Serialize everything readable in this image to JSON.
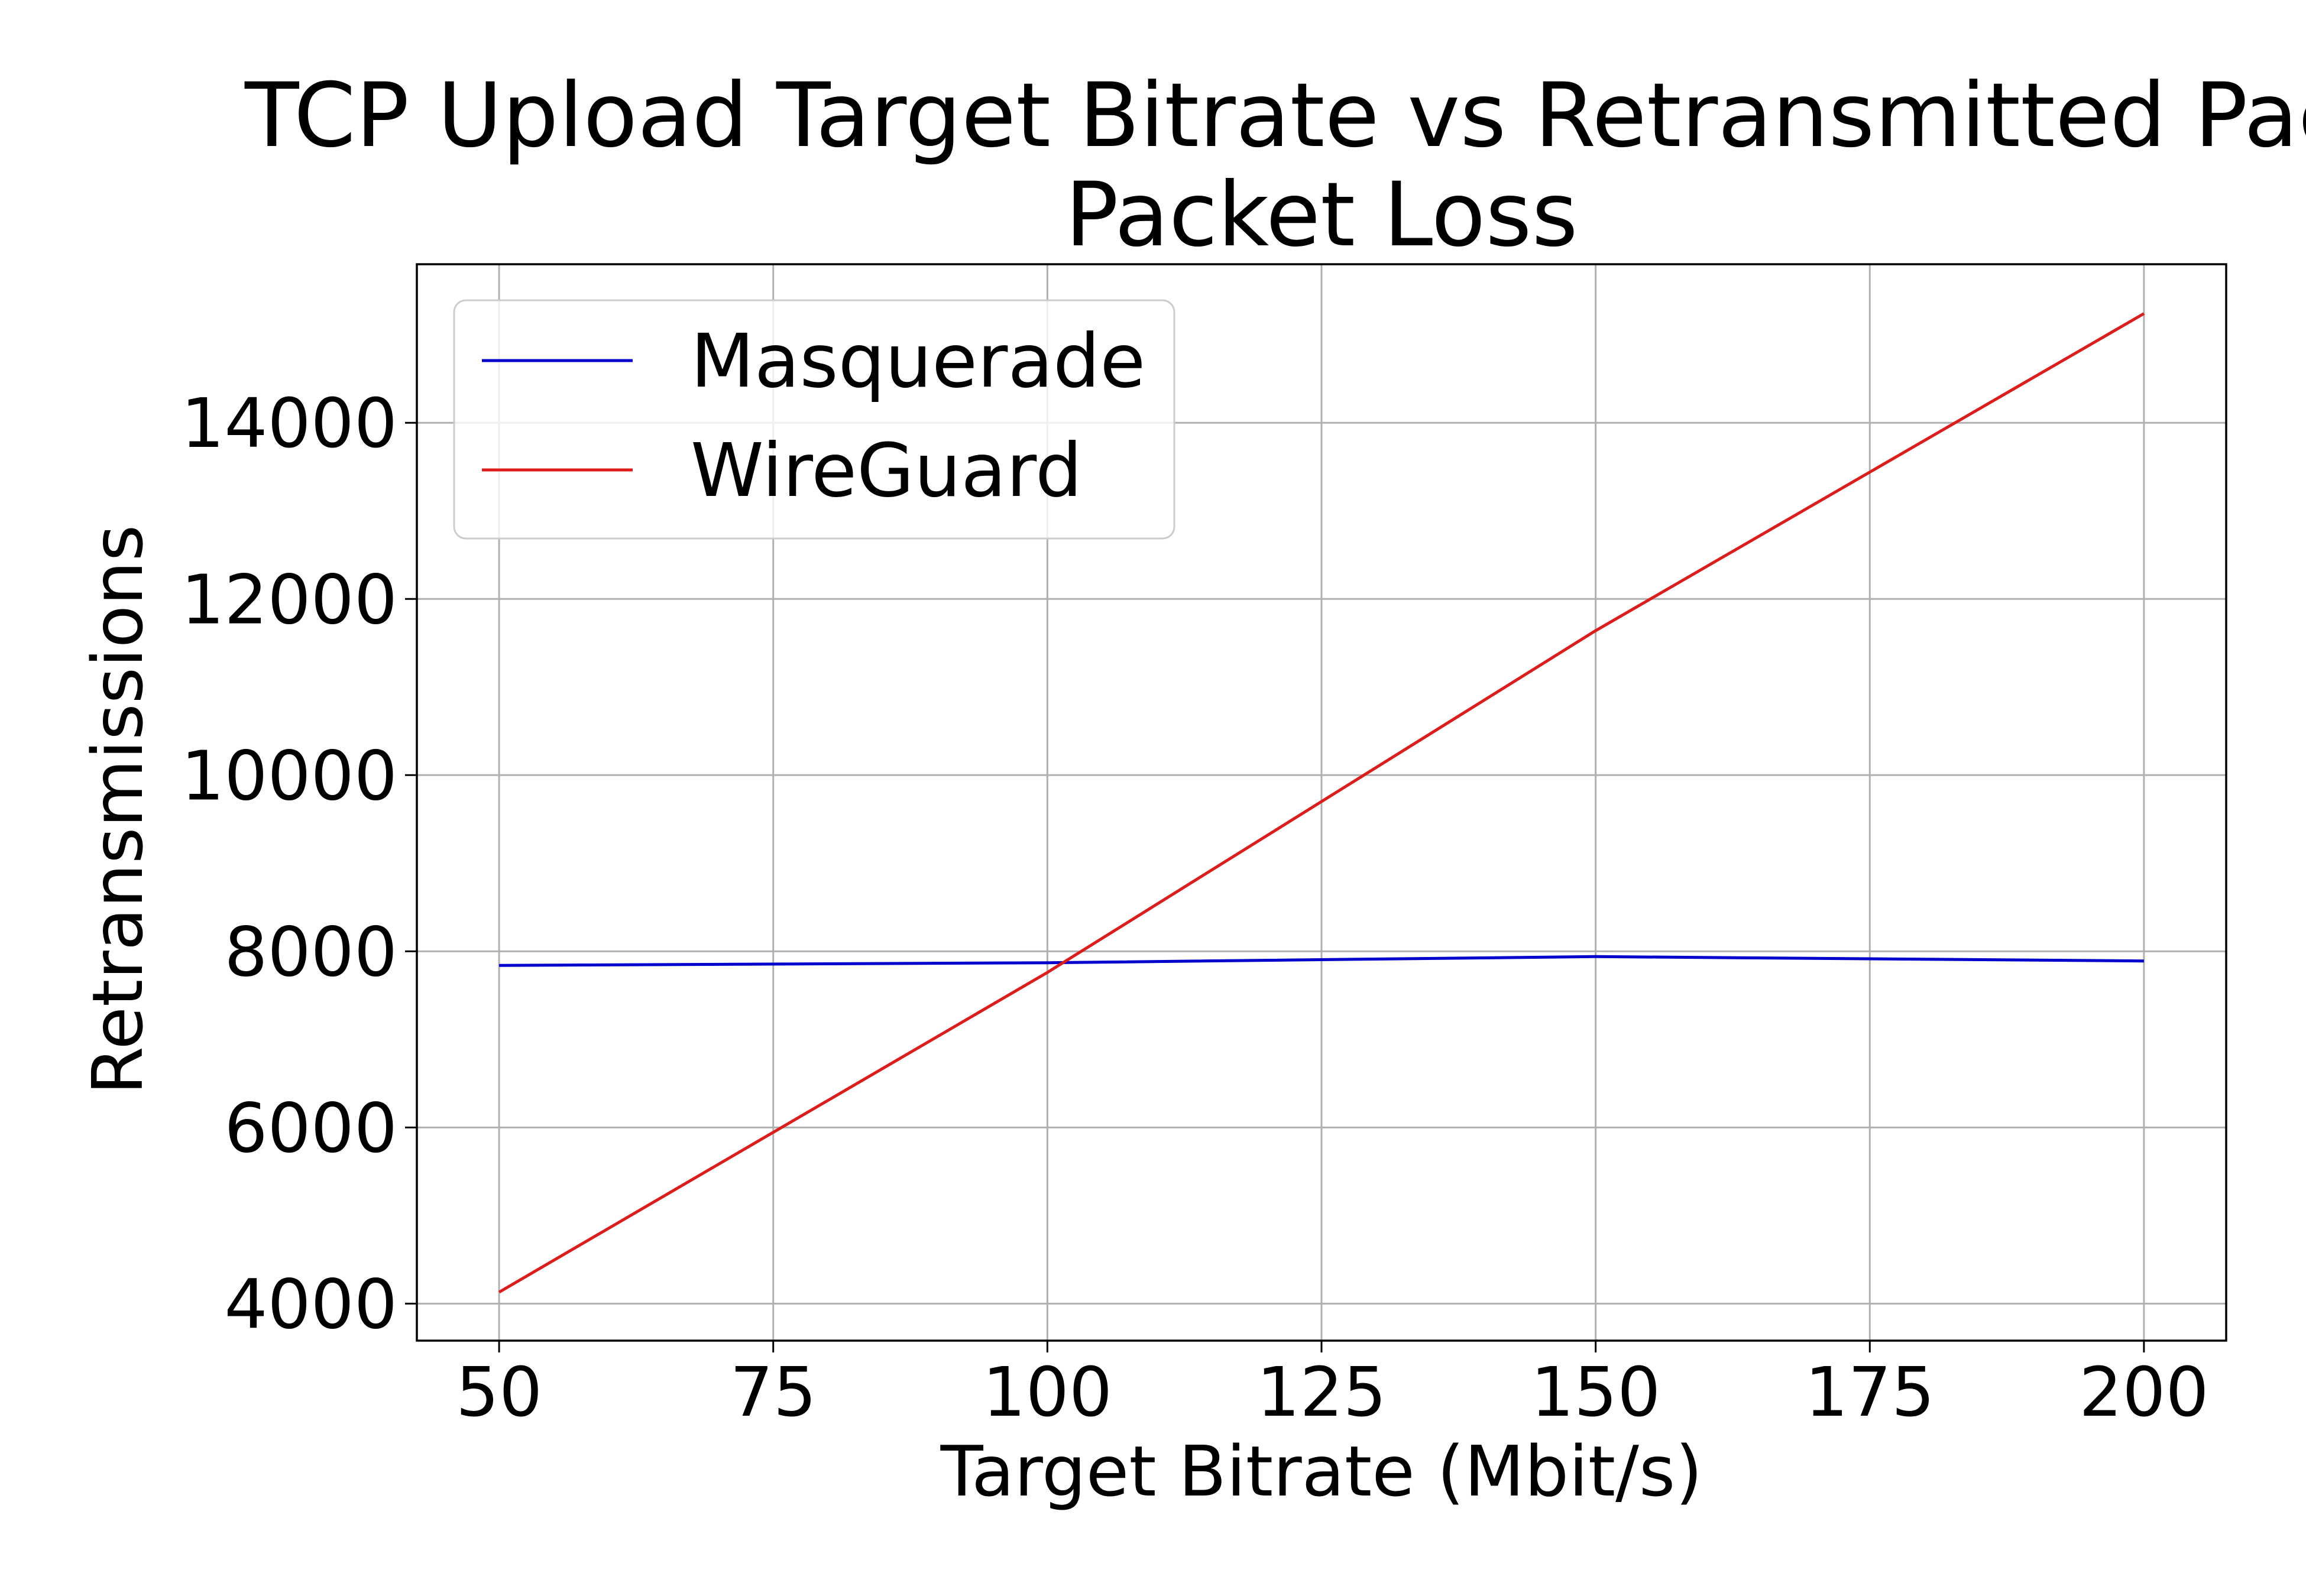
{
  "chart_data": {
    "type": "line",
    "title_lines": [
      "TCP Upload Target Bitrate vs Retransmitted Pack",
      "Packet Loss"
    ],
    "xlabel": "Target Bitrate (Mbit/s)",
    "ylabel": "Retransmissions",
    "xlim": [
      42.5,
      207.5
    ],
    "ylim": [
      3580,
      15800
    ],
    "xticks": [
      50,
      75,
      100,
      125,
      150,
      175,
      200
    ],
    "xtick_labels": [
      "50",
      "75",
      "100",
      "125",
      "150",
      "175",
      "200"
    ],
    "yticks": [
      4000,
      6000,
      8000,
      10000,
      12000,
      14000
    ],
    "ytick_labels": [
      "4000",
      "6000",
      "8000",
      "10000",
      "12000",
      "14000"
    ],
    "grid": true,
    "legend_position": "upper-left",
    "x": [
      50,
      100,
      150,
      200
    ],
    "series": [
      {
        "name": "Masquerade",
        "color": "#0000cc",
        "values": [
          7840,
          7870,
          7940,
          7890
        ]
      },
      {
        "name": "WireGuard",
        "color": "#dd1c1c",
        "values": [
          4130,
          7760,
          11640,
          15240
        ]
      }
    ]
  }
}
